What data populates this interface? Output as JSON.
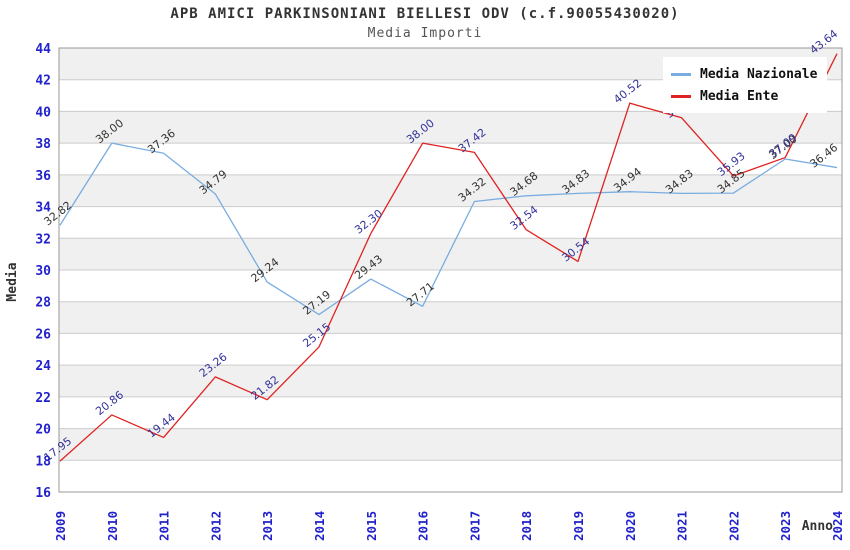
{
  "header": {
    "title": "APB AMICI PARKINSONIANI BIELLESI ODV (c.f.90055430020)",
    "subtitle": "Media Importi"
  },
  "axes": {
    "y_label": "Media",
    "x_label": "Anno",
    "tick_color": "#2222cc",
    "axis_label_color": "#333333"
  },
  "colors": {
    "band_gray": "#f0f0f0",
    "band_white": "#ffffff",
    "gridline": "#cccccc",
    "plot_border": "#999999"
  },
  "chart_data": {
    "type": "line",
    "title": "APB AMICI PARKINSONIANI BIELLESI ODV (c.f.90055430020)",
    "subtitle": "Media Importi",
    "xlabel": "Anno",
    "ylabel": "Media",
    "ylim": [
      16,
      44
    ],
    "ytick_step": 2,
    "grid": true,
    "alternating_bands": true,
    "legend_position": "top-right",
    "x": [
      "2009",
      "2010",
      "2011",
      "2012",
      "2013",
      "2014",
      "2015",
      "2016",
      "2017",
      "2018",
      "2019",
      "2020",
      "2021",
      "2022",
      "2023",
      "2024"
    ],
    "series": [
      {
        "name": "Media Nazionale",
        "color": "#79ade0",
        "label_color": "#333333",
        "values": [
          32.82,
          38.0,
          37.36,
          34.79,
          29.24,
          27.19,
          29.43,
          27.71,
          34.32,
          34.68,
          34.83,
          34.94,
          34.83,
          34.85,
          37.0,
          36.46
        ]
      },
      {
        "name": "Media Ente",
        "color": "#e02222",
        "label_color": "#333399",
        "values": [
          17.95,
          20.86,
          19.44,
          23.26,
          21.82,
          25.15,
          32.3,
          38.0,
          37.42,
          32.54,
          30.54,
          40.52,
          39.6,
          35.93,
          37.09,
          43.64
        ]
      }
    ]
  }
}
